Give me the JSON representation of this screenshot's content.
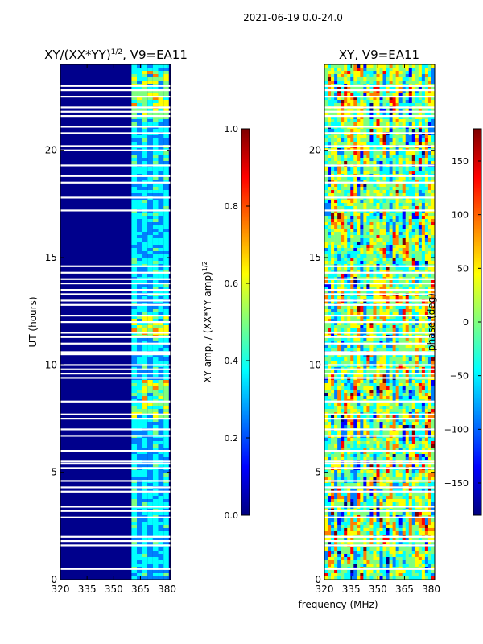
{
  "figure": {
    "suptitle": "2021-06-19 0.0-24.0",
    "xlabel": "frequency (MHz)"
  },
  "colors": {
    "background": "#ffffff",
    "amp_fill": "#00008c",
    "jet_stops": [
      "#00007f",
      "#0000ff",
      "#007fff",
      "#00ffff",
      "#7fff7f",
      "#ffff00",
      "#ff7f00",
      "#ff0000",
      "#7f0000"
    ]
  },
  "chart_data": [
    {
      "type": "heatmap",
      "title": "XY/(XX*YY)",
      "title_exponent": "1/2",
      "title_suffix": ", V9=EA11",
      "xlabel": "frequency (MHz)",
      "ylabel": "UT (hours)",
      "xlim": [
        320,
        382
      ],
      "ylim": [
        0,
        24
      ],
      "xticks": [
        320,
        335,
        350,
        365,
        380
      ],
      "yticks": [
        0,
        5,
        10,
        15,
        20
      ],
      "active_bands_mhz": [
        [
          360,
          363
        ],
        [
          363,
          366
        ],
        [
          366,
          369
        ],
        [
          369,
          372
        ],
        [
          372,
          375
        ],
        [
          375,
          378
        ],
        [
          378,
          381
        ]
      ],
      "flagged_ut_hours": [
        0.5,
        1.6,
        1.8,
        2.0,
        2.9,
        3.2,
        3.4,
        4.1,
        4.3,
        4.6,
        5.2,
        5.4,
        5.5,
        6.0,
        6.7,
        7.0,
        7.5,
        7.7,
        8.3,
        9.4,
        9.6,
        9.8,
        10.0,
        10.5,
        10.6,
        11.0,
        11.3,
        11.5,
        12.0,
        12.3,
        12.8,
        13.0,
        13.3,
        13.5,
        13.8,
        14.0,
        14.3,
        14.6,
        17.2,
        17.8,
        18.5,
        18.8,
        19.3,
        20.0,
        20.2,
        20.8,
        21.1,
        21.6,
        21.8,
        22.0,
        22.5,
        22.8,
        23.0
      ],
      "colorbar": {
        "label": "XY amp. / (XX*YY amp)",
        "label_exponent": "1/2",
        "range": [
          0.0,
          1.0
        ],
        "ticks": [
          "0.0",
          "0.2",
          "0.4",
          "0.6",
          "0.8",
          "1.0"
        ]
      }
    },
    {
      "type": "heatmap",
      "title": "XY, V9=EA11",
      "xlabel": "frequency (MHz)",
      "ylabel": "",
      "xlim": [
        320,
        382
      ],
      "ylim": [
        0,
        24
      ],
      "xticks": [
        320,
        335,
        350,
        365,
        380
      ],
      "yticks": [
        0,
        5,
        10,
        15,
        20
      ],
      "flagged_ut_hours": [
        0.5,
        1.6,
        1.8,
        2.0,
        2.9,
        3.2,
        3.4,
        4.1,
        4.3,
        4.6,
        5.2,
        5.4,
        5.5,
        6.0,
        6.7,
        7.0,
        7.5,
        7.7,
        8.3,
        9.4,
        9.6,
        9.8,
        10.0,
        10.5,
        10.6,
        11.0,
        11.3,
        11.5,
        12.0,
        12.3,
        12.8,
        13.0,
        13.3,
        13.5,
        13.8,
        14.0,
        14.3,
        14.6,
        17.2,
        17.8,
        18.5,
        18.8,
        19.3,
        20.0,
        20.2,
        20.8,
        21.1,
        21.6,
        21.8,
        22.0,
        22.5,
        22.8,
        23.0
      ],
      "colorbar": {
        "label": "phase (deg)",
        "range": [
          -180,
          180
        ],
        "ticks": [
          "−150",
          "−100",
          "−50",
          "0",
          "50",
          "100",
          "150"
        ]
      }
    }
  ]
}
